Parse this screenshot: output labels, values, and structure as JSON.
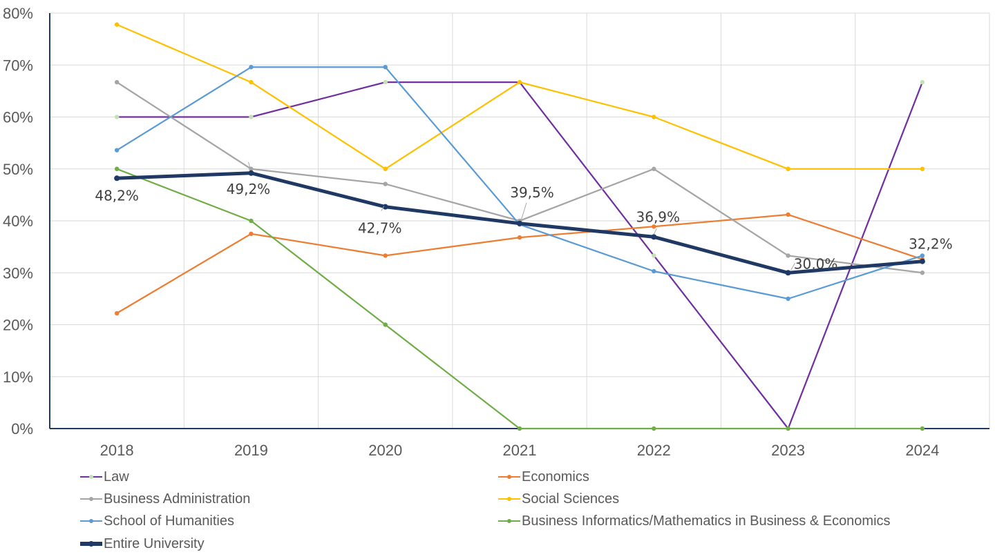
{
  "chart_data": {
    "type": "line",
    "title": "",
    "xlabel": "",
    "ylabel": "",
    "categories": [
      "2018",
      "2019",
      "2020",
      "2021",
      "2022",
      "2023",
      "2024"
    ],
    "ylim": [
      0,
      80
    ],
    "y_ticks": [
      0,
      10,
      20,
      30,
      40,
      50,
      60,
      70,
      80
    ],
    "y_tick_labels": [
      "0%",
      "10%",
      "20%",
      "30%",
      "40%",
      "50%",
      "60%",
      "70%",
      "80%"
    ],
    "grid": true,
    "legend_position": "bottom",
    "series": [
      {
        "name": "Law",
        "color": "#7030A0",
        "marker_color": "#C5E0B4",
        "values": [
          60.0,
          60.0,
          66.7,
          66.7,
          33.3,
          0.0,
          66.7
        ]
      },
      {
        "name": "Economics",
        "color": "#ED7D31",
        "marker_color": "#ED7D31",
        "values": [
          22.2,
          37.5,
          33.3,
          36.8,
          38.9,
          41.2,
          32.6
        ]
      },
      {
        "name": "Business Administration",
        "color": "#A5A5A5",
        "marker_color": "#A5A5A5",
        "values": [
          66.7,
          50.0,
          47.1,
          40.0,
          50.0,
          33.3,
          30.0
        ]
      },
      {
        "name": "Social Sciences",
        "color": "#FFC000",
        "marker_color": "#FFC000",
        "values": [
          77.8,
          66.7,
          50.0,
          66.7,
          60.0,
          50.0,
          50.0
        ]
      },
      {
        "name": "School of Humanities",
        "color": "#5B9BD5",
        "marker_color": "#5B9BD5",
        "values": [
          53.6,
          69.6,
          69.6,
          39.3,
          30.3,
          25.0,
          33.3
        ]
      },
      {
        "name": "Business Informatics/Mathematics in Business & Economics",
        "color": "#70AD47",
        "marker_color": "#70AD47",
        "values": [
          50.0,
          40.0,
          20.0,
          0.0,
          0.0,
          0.0,
          0.0
        ]
      },
      {
        "name": "Entire University",
        "color": "#203864",
        "marker_color": "#203864",
        "thick": true,
        "values": [
          48.2,
          49.2,
          42.7,
          39.5,
          36.9,
          30.0,
          32.2
        ],
        "data_labels": [
          "48,2%",
          "49,2%",
          "42,7%",
          "39,5%",
          "36,9%",
          "30,0%",
          "32,2%"
        ]
      }
    ]
  }
}
